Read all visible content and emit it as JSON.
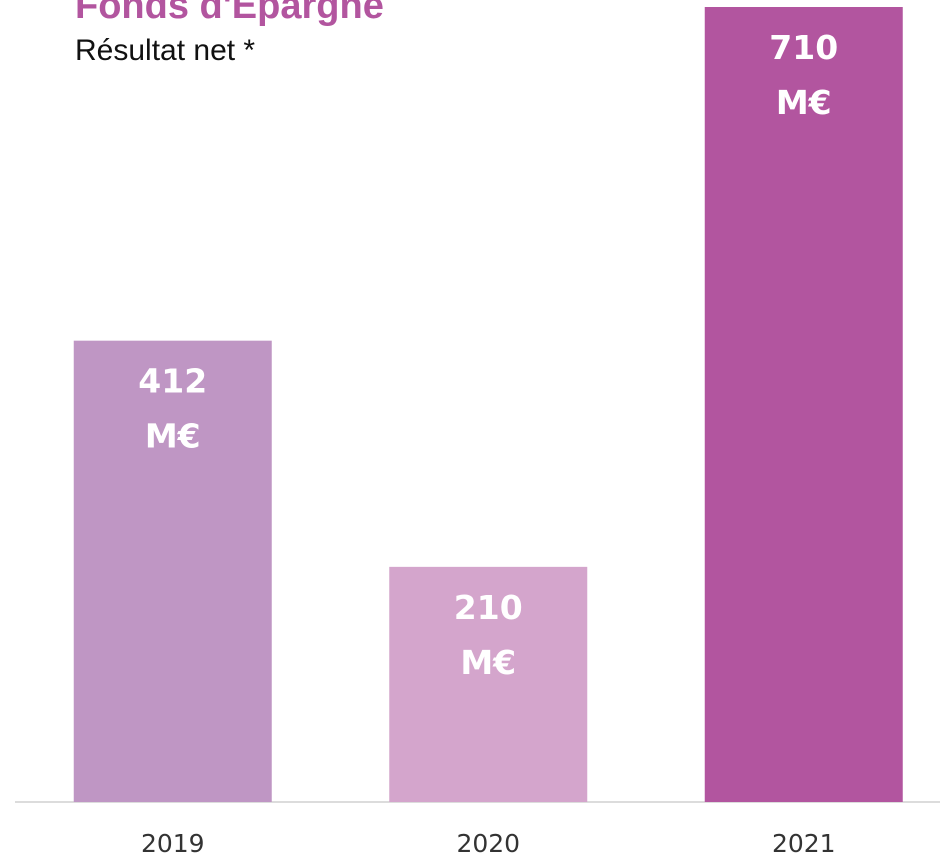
{
  "chart_data": {
    "type": "bar",
    "title": "Fonds d'Épargne",
    "subtitle": "Résultat net *",
    "categories": [
      "2019",
      "2020",
      "2021"
    ],
    "values": [
      412,
      210,
      710
    ],
    "value_labels": [
      "412 M€",
      "210 M€",
      "710 M€"
    ],
    "colors": [
      "#bf96c4",
      "#d4a5cc",
      "#b2559f"
    ]
  }
}
